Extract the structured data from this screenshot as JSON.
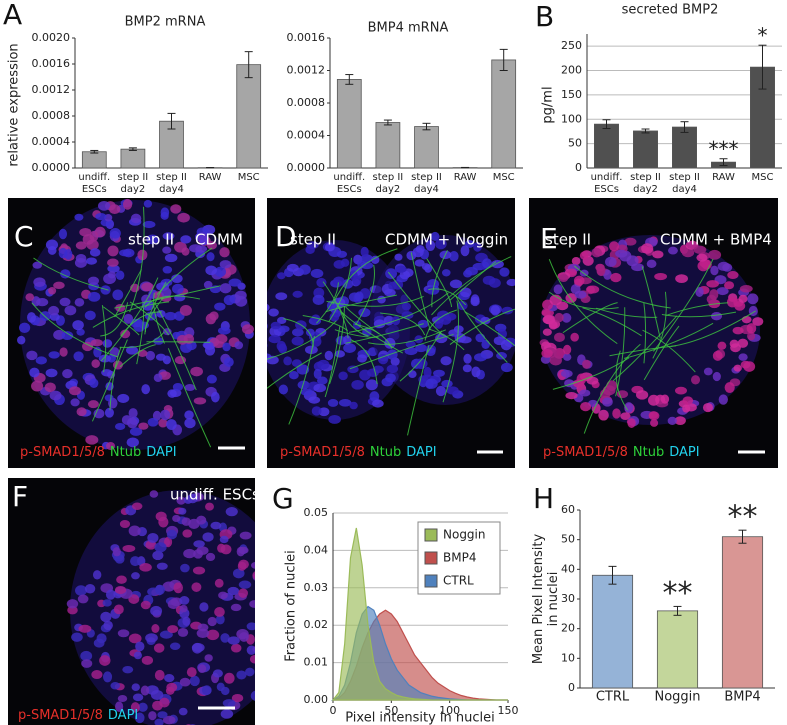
{
  "panels": {
    "labels": [
      "A",
      "B",
      "C",
      "D",
      "E",
      "F",
      "G",
      "H"
    ],
    "images": [
      {
        "title": [
          "step II",
          "CDMM"
        ],
        "stain": [
          {
            "text": "p-SMAD1/5/8",
            "color": "#e8302a"
          },
          {
            "text": "Ntub",
            "color": "#2ed13a"
          },
          {
            "text": "DAPI",
            "color": "#22d3ee"
          }
        ]
      },
      {
        "title": [
          "step II",
          "CDMM + Noggin"
        ],
        "stain": [
          {
            "text": "p-SMAD1/5/8",
            "color": "#e8302a"
          },
          {
            "text": "Ntub",
            "color": "#2ed13a"
          },
          {
            "text": "DAPI",
            "color": "#22d3ee"
          }
        ]
      },
      {
        "title": [
          "step II",
          "CDMM + BMP4"
        ],
        "stain": [
          {
            "text": "p-SMAD1/5/8",
            "color": "#e8302a"
          },
          {
            "text": "Ntub",
            "color": "#2ed13a"
          },
          {
            "text": "DAPI",
            "color": "#22d3ee"
          }
        ]
      },
      {
        "title": [
          "undiff. ESCs"
        ],
        "stain": [
          {
            "text": "p-SMAD1/5/8",
            "color": "#e8302a"
          },
          {
            "text": "DAPI",
            "color": "#22d3ee"
          }
        ]
      }
    ]
  },
  "chart_data": [
    {
      "type": "bar",
      "title": "BMP2 mRNA",
      "y_label": [
        "relative expression"
      ],
      "categories": [
        [
          "undiff.",
          "ESCs"
        ],
        [
          "step II",
          "day2"
        ],
        [
          "step II",
          "day4"
        ],
        [
          "RAW"
        ],
        [
          "MSC"
        ]
      ],
      "values": [
        0.00025,
        0.00029,
        0.00072,
        5e-06,
        0.00159
      ],
      "errors": [
        2e-05,
        2e-05,
        0.00012,
        2e-06,
        0.0002
      ],
      "color": "#a6a6a6",
      "grid": false,
      "ylim": [
        0,
        0.002
      ],
      "yticks": [
        {
          "value": 0,
          "label": "0.0000"
        },
        {
          "value": 0.0004,
          "label": "0.0004"
        },
        {
          "value": 0.0008,
          "label": "0.0008"
        },
        {
          "value": 0.0012,
          "label": "0.0012"
        },
        {
          "value": 0.0016,
          "label": "0.0016"
        },
        {
          "value": 0.002,
          "label": "0.0020"
        }
      ]
    },
    {
      "type": "bar",
      "title": "BMP4 mRNA",
      "categories": [
        [
          "undiff.",
          "ESCs"
        ],
        [
          "step II",
          "day2"
        ],
        [
          "step II",
          "day4"
        ],
        [
          "RAW"
        ],
        [
          "MSC"
        ]
      ],
      "values": [
        0.00109,
        0.00056,
        0.00051,
        5e-06,
        0.00133
      ],
      "errors": [
        6e-05,
        3e-05,
        4e-05,
        2e-06,
        0.00013
      ],
      "color": "#a6a6a6",
      "grid": false,
      "ylim": [
        0,
        0.0016
      ],
      "yticks": [
        {
          "value": 0,
          "label": "0.0000"
        },
        {
          "value": 0.0004,
          "label": "0.0004"
        },
        {
          "value": 0.0008,
          "label": "0.0008"
        },
        {
          "value": 0.0012,
          "label": "0.0012"
        },
        {
          "value": 0.0016,
          "label": "0.0016"
        }
      ]
    },
    {
      "type": "bar",
      "title": "secreted BMP2",
      "y_label": [
        "pg/ml"
      ],
      "categories": [
        [
          "undiff.",
          "ESCs"
        ],
        [
          "step II",
          "day2"
        ],
        [
          "step II",
          "day4"
        ],
        [
          "RAW"
        ],
        [
          "MSC"
        ]
      ],
      "values": [
        90,
        76,
        84,
        12,
        207
      ],
      "errors": [
        9,
        4,
        11,
        7,
        45
      ],
      "annotations": [
        null,
        null,
        null,
        "***",
        "*"
      ],
      "color": "#505050",
      "grid": true,
      "ylim": [
        0,
        275
      ],
      "yticks": [
        0,
        50,
        100,
        150,
        200,
        250
      ]
    },
    {
      "type": "area",
      "x_label": "Pixel intensity in nuclei",
      "y_label": [
        "Fraction of nuclei"
      ],
      "x": [
        0,
        5,
        10,
        15,
        20,
        25,
        30,
        35,
        40,
        45,
        50,
        55,
        60,
        65,
        70,
        75,
        80,
        85,
        90,
        95,
        100,
        105,
        110,
        115,
        120,
        125,
        130,
        135,
        140,
        145,
        150
      ],
      "series": [
        {
          "name": "Noggin",
          "color": "#9bbb59",
          "values": [
            0,
            0.002,
            0.015,
            0.038,
            0.046,
            0.036,
            0.02,
            0.01,
            0.005,
            0.003,
            0.002,
            0.0012,
            0.0008,
            0.0005,
            0.0003,
            0.0002,
            0.0001,
            0,
            0,
            0,
            0,
            0,
            0,
            0,
            0,
            0,
            0,
            0,
            0,
            0,
            0
          ]
        },
        {
          "name": "BMP4",
          "color": "#c0504d",
          "values": [
            0,
            0.0005,
            0.002,
            0.005,
            0.009,
            0.014,
            0.018,
            0.021,
            0.023,
            0.024,
            0.023,
            0.021,
            0.018,
            0.015,
            0.012,
            0.01,
            0.008,
            0.006,
            0.0045,
            0.0035,
            0.0025,
            0.0018,
            0.0012,
            0.0008,
            0.0005,
            0.0003,
            0.0002,
            0.0001,
            0,
            0,
            0
          ]
        },
        {
          "name": "CTRL",
          "color": "#4f81bd",
          "values": [
            0,
            0.001,
            0.004,
            0.01,
            0.018,
            0.023,
            0.025,
            0.024,
            0.02,
            0.015,
            0.011,
            0.008,
            0.006,
            0.004,
            0.003,
            0.002,
            0.0015,
            0.001,
            0.0007,
            0.0005,
            0.0003,
            0.0002,
            0.0001,
            0,
            0,
            0,
            0,
            0,
            0,
            0,
            0
          ]
        }
      ],
      "legend": "upper right",
      "grid": true,
      "xlim": [
        0,
        150
      ],
      "xticks": [
        0,
        50,
        100,
        150
      ],
      "ylim": [
        0,
        0.05
      ],
      "yticks": [
        {
          "value": 0,
          "label": "0.00"
        },
        0.01,
        0.02,
        0.03,
        0.04,
        {
          "value": 0.05,
          "label": "0.05"
        }
      ]
    },
    {
      "type": "bar",
      "y_label": [
        "Mean Pixel Intensity",
        "in nuclei"
      ],
      "categories": [
        [
          "CTRL"
        ],
        [
          "Noggin"
        ],
        [
          "BMP4"
        ]
      ],
      "values": [
        38,
        26,
        51
      ],
      "errors": [
        3,
        1.5,
        2.2
      ],
      "annotations": [
        null,
        "**",
        "**"
      ],
      "colors": [
        "#95b3d7",
        "#c3d69b",
        "#d99694"
      ],
      "grid": false,
      "ylim": [
        0,
        60
      ],
      "yticks": [
        0,
        10,
        20,
        30,
        40,
        50,
        60
      ]
    }
  ]
}
